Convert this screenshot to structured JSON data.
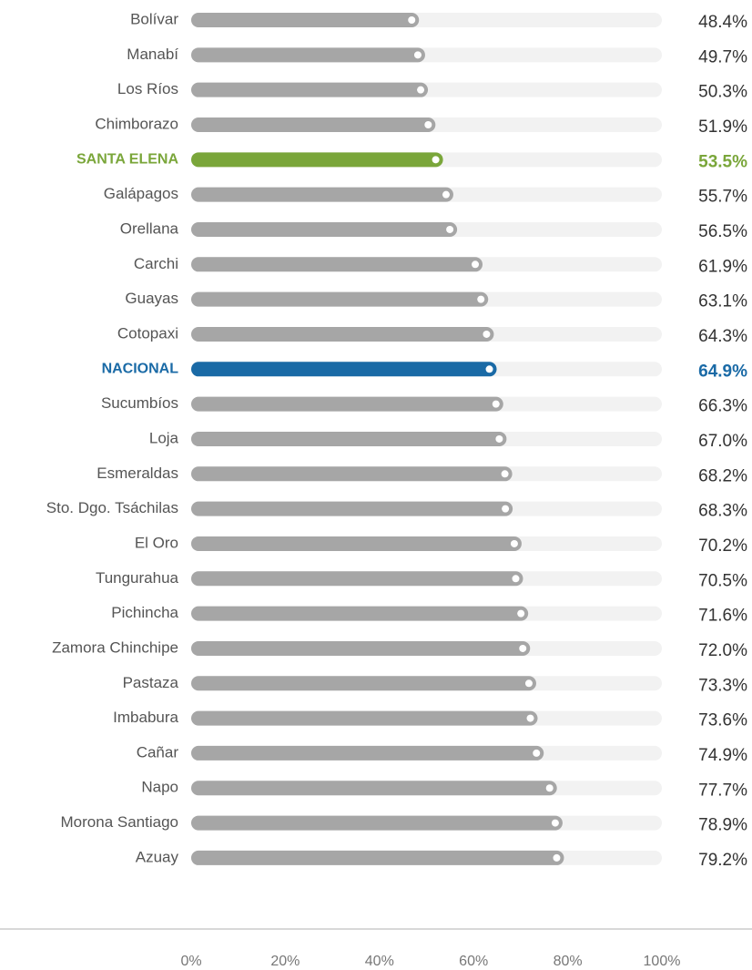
{
  "chart_data": {
    "type": "bar",
    "orientation": "horizontal",
    "categories": [
      "Bolívar",
      "Manabí",
      "Los Ríos",
      "Chimborazo",
      "SANTA ELENA",
      "Galápagos",
      "Orellana",
      "Carchi",
      "Guayas",
      "Cotopaxi",
      "NACIONAL",
      "Sucumbíos",
      "Loja",
      "Esmeraldas",
      "Sto. Dgo. Tsáchilas",
      "El Oro",
      "Tungurahua",
      "Pichincha",
      "Zamora Chinchipe",
      "Pastaza",
      "Imbabura",
      "Cañar",
      "Napo",
      "Morona Santiago",
      "Azuay"
    ],
    "values": [
      48.4,
      49.7,
      50.3,
      51.9,
      53.5,
      55.7,
      56.5,
      61.9,
      63.1,
      64.3,
      64.9,
      66.3,
      67.0,
      68.2,
      68.3,
      70.2,
      70.5,
      71.6,
      72.0,
      73.3,
      73.6,
      74.9,
      77.7,
      78.9,
      79.2
    ],
    "value_labels": [
      "48.4%",
      "49.7%",
      "50.3%",
      "51.9%",
      "53.5%",
      "55.7%",
      "56.5%",
      "61.9%",
      "63.1%",
      "64.3%",
      "64.9%",
      "66.3%",
      "67.0%",
      "68.2%",
      "68.3%",
      "70.2%",
      "70.5%",
      "71.6%",
      "72.0%",
      "73.3%",
      "73.6%",
      "74.9%",
      "77.7%",
      "78.9%",
      "79.2%"
    ],
    "colors": [
      "#a6a6a6",
      "#a6a6a6",
      "#a6a6a6",
      "#a6a6a6",
      "#7aa63a",
      "#a6a6a6",
      "#a6a6a6",
      "#a6a6a6",
      "#a6a6a6",
      "#a6a6a6",
      "#1a6aa6",
      "#a6a6a6",
      "#a6a6a6",
      "#a6a6a6",
      "#a6a6a6",
      "#a6a6a6",
      "#a6a6a6",
      "#a6a6a6",
      "#a6a6a6",
      "#a6a6a6",
      "#a6a6a6",
      "#a6a6a6",
      "#a6a6a6",
      "#a6a6a6",
      "#a6a6a6"
    ],
    "xlim": [
      0,
      100
    ],
    "xticks": [
      {
        "value": 0,
        "label": "0%"
      },
      {
        "value": 20,
        "label": "20%"
      },
      {
        "value": 40,
        "label": "40%"
      },
      {
        "value": 60,
        "label": "60%"
      },
      {
        "value": 80,
        "label": "80%"
      },
      {
        "value": 100,
        "label": "100%"
      }
    ]
  }
}
